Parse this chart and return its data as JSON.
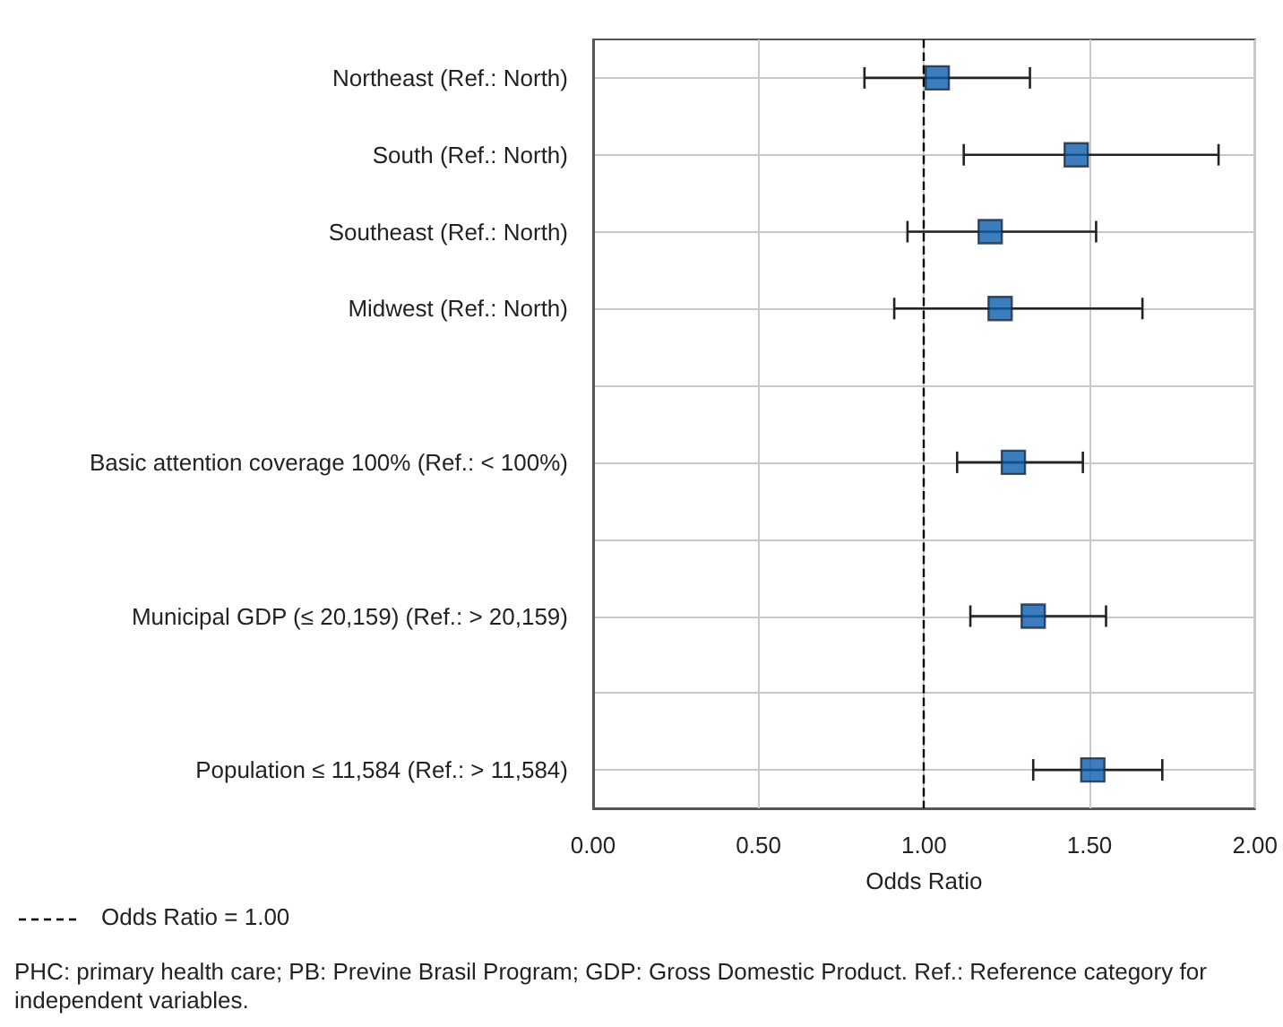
{
  "chart_data": {
    "type": "scatter",
    "orientation": "horizontal",
    "xlabel": "Odds Ratio",
    "categories": [
      "Northeast (Ref.: North)",
      "South (Ref.: North)",
      "Southeast (Ref.: North)",
      "Midwest (Ref.: North)",
      null,
      "Basic attention coverage 100% (Ref.: < 100%)",
      null,
      "Municipal GDP (≤ 20,159) (Ref.: > 20,159)",
      null,
      "Population ≤ 11,584 (Ref.: > 11,584)"
    ],
    "series": [
      {
        "color": "#0a5cad",
        "values": [
          1.04,
          1.46,
          1.2,
          1.23,
          null,
          1.27,
          null,
          1.33,
          null,
          1.51
        ],
        "errors": [
          [
            0.82,
            1.32
          ],
          [
            1.12,
            1.89
          ],
          [
            0.95,
            1.52
          ],
          [
            0.91,
            1.66
          ],
          null,
          [
            1.1,
            1.48
          ],
          null,
          [
            1.14,
            1.55
          ],
          null,
          [
            1.33,
            1.72
          ]
        ]
      }
    ],
    "xlim": [
      0,
      2
    ],
    "xticks": [
      {
        "value": 0,
        "label": "0.00"
      },
      {
        "value": 0.5,
        "label": "0.50"
      },
      {
        "value": 1,
        "label": "1.00"
      },
      {
        "value": 1.5,
        "label": "1.50"
      },
      {
        "value": 2,
        "label": "2.00"
      }
    ],
    "ref_lines": [
      {
        "axis": "x",
        "value": 1,
        "label": "Odds Ratio = 1.00",
        "color": "#000000",
        "line_style": "dashed"
      }
    ],
    "annotations": [
      "PHC: primary health care; PB: Previne Brasil Program; GDP: Gross Domestic Product. Ref.: Reference category for independent variables."
    ],
    "grid": true,
    "marker": "square",
    "legend": "bottom left"
  }
}
